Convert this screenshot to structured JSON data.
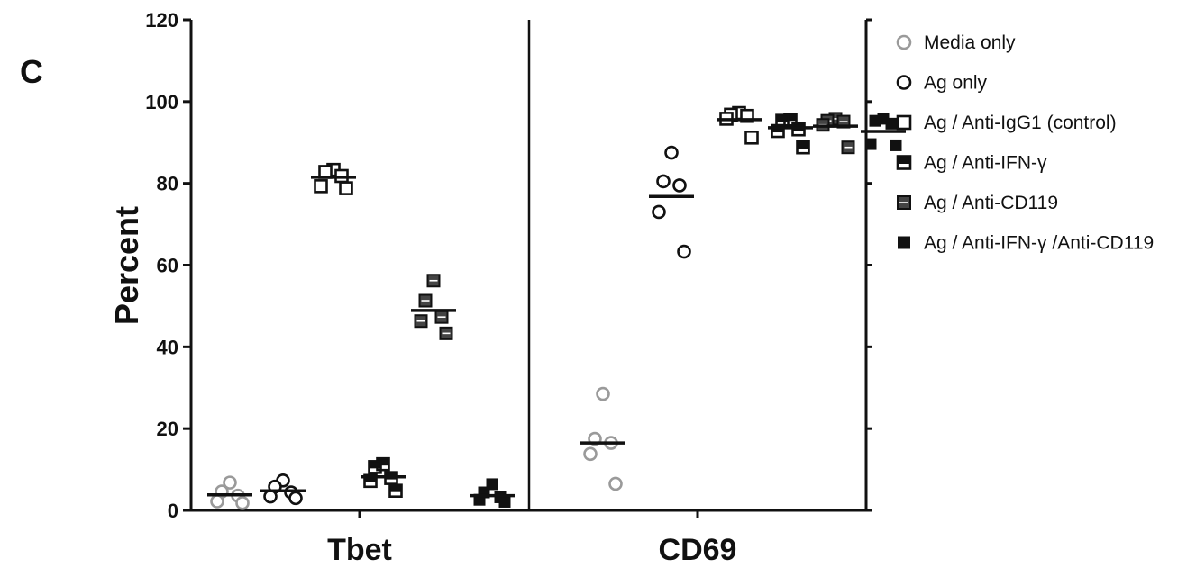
{
  "panel_label": "C",
  "colors": {
    "axis": "#111111",
    "media_only": "#9a9a9a",
    "black": "#111111",
    "anti_cd119_fill": "#444444"
  },
  "chart_data": {
    "type": "scatter",
    "title": "",
    "xlabel": "",
    "ylabel": "Percent",
    "ylim": [
      0,
      120
    ],
    "yticks": [
      "0",
      "20",
      "40",
      "60",
      "80",
      "100",
      "120"
    ],
    "groups": [
      "Tbet",
      "CD69"
    ],
    "grid": false,
    "legend_position": "right",
    "series": [
      {
        "name": "Media only",
        "marker": "open-circle",
        "color": "#9a9a9a",
        "points": {
          "Tbet": [
            6.8,
            4.6,
            3.6,
            2.2,
            1.8
          ],
          "CD69": [
            28.5,
            17.5,
            16.5,
            13.8,
            6.5
          ]
        },
        "medians": {
          "Tbet": 3.8,
          "CD69": 16.5
        }
      },
      {
        "name": "Ag only",
        "marker": "open-circle",
        "color": "#111111",
        "points": {
          "Tbet": [
            7.3,
            5.8,
            4.4,
            3.4,
            3.0
          ],
          "CD69": [
            87.5,
            80.5,
            79.5,
            73,
            63.3
          ]
        },
        "medians": {
          "Tbet": 4.8,
          "CD69": 76.8
        }
      },
      {
        "name": "Ag / Anti-IgG1 (control)",
        "marker": "open-square",
        "color": "#111111",
        "points": {
          "Tbet": [
            83.3,
            82.8,
            81.8,
            79.3,
            78.8
          ],
          "CD69": [
            97.2,
            96.8,
            96.5,
            95.8,
            91.2
          ]
        },
        "medians": {
          "Tbet": 81.5,
          "CD69": 95.6
        }
      },
      {
        "name": "Ag / Anti-IFN-γ",
        "marker": "split-square",
        "color": "#111111",
        "points": {
          "Tbet": [
            11.3,
            10.6,
            7.9,
            7.2,
            4.8
          ],
          "CD69": [
            95.6,
            95.3,
            93.2,
            92.8,
            88.8
          ]
        },
        "medians": {
          "Tbet": 8.2,
          "CD69": 93.6
        }
      },
      {
        "name": "Ag / Anti-CD119",
        "marker": "dark-split-square",
        "color": "#444444",
        "points": {
          "Tbet": [
            56.2,
            51.3,
            47.3,
            46.3,
            43.3
          ],
          "CD69": [
            95.8,
            95.3,
            95.1,
            94.3,
            88.8
          ]
        },
        "medians": {
          "Tbet": 48.9,
          "CD69": 94.0
        }
      },
      {
        "name": "Ag / Anti-IFN-γ /Anti-CD119",
        "marker": "filled-square",
        "color": "#111111",
        "points": {
          "Tbet": [
            6.4,
            4.4,
            3.2,
            2.6,
            2.1
          ],
          "CD69": [
            95.8,
            95.3,
            94.6,
            89.6,
            89.3
          ]
        },
        "medians": {
          "Tbet": 3.6,
          "CD69": 92.7
        }
      }
    ]
  }
}
